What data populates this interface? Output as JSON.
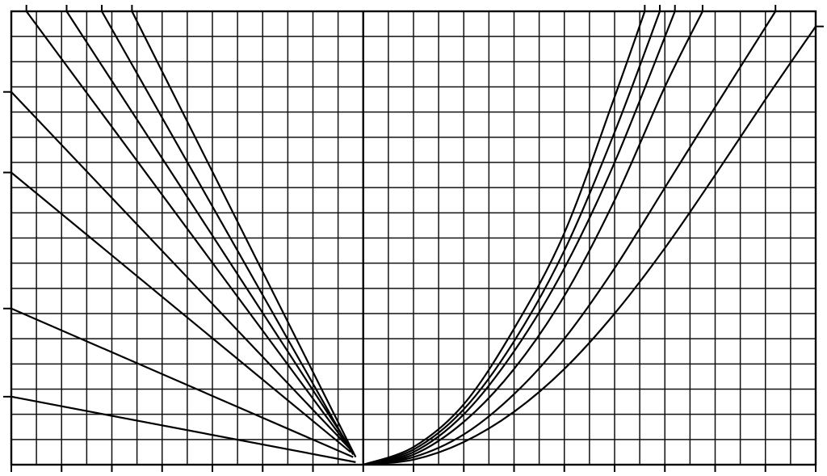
{
  "chart_data": {
    "type": "line",
    "title": "",
    "xlabel": "",
    "ylabel": "",
    "xlim": [
      -14,
      18
    ],
    "ylim": [
      0,
      18
    ],
    "grid": true,
    "x_grid_step": 1,
    "y_grid_step": 1,
    "x_major_ticks": [
      -14,
      -12,
      -10,
      -8,
      -6,
      -4,
      -2,
      0,
      2,
      4,
      6,
      8,
      10,
      12,
      14,
      16,
      18
    ],
    "y_major_ticks_left": [
      2.7,
      6.2,
      11.6,
      14.8
    ],
    "y_major_ticks_right": [
      17.4
    ],
    "top_ticks": [
      -13.4,
      -11.8,
      -10.4,
      -9.2,
      11.2,
      11.8,
      12.4,
      13.5,
      16.4
    ],
    "legend": "none",
    "colors": {
      "line": "#000000",
      "grid": "#111111",
      "background": "#ffffff"
    },
    "series": [
      {
        "kind": "linear",
        "x": [
          -14,
          -0.3
        ],
        "y": [
          2.7,
          0.1
        ]
      },
      {
        "kind": "linear",
        "x": [
          -14,
          -0.4
        ],
        "y": [
          6.2,
          0.3
        ]
      },
      {
        "kind": "linear",
        "x": [
          -14,
          -0.5
        ],
        "y": [
          11.6,
          0.5
        ]
      },
      {
        "kind": "linear",
        "x": [
          -14,
          -0.5
        ],
        "y": [
          14.8,
          0.6
        ]
      },
      {
        "kind": "linear",
        "x": [
          -13.4,
          -0.5
        ],
        "y": [
          18,
          0.6
        ]
      },
      {
        "kind": "linear",
        "x": [
          -11.8,
          -0.4
        ],
        "y": [
          18,
          0.5
        ]
      },
      {
        "kind": "linear",
        "x": [
          -10.4,
          -0.4
        ],
        "y": [
          18,
          0.4
        ]
      },
      {
        "kind": "linear",
        "x": [
          -9.2,
          -0.3
        ],
        "y": [
          18,
          0.3
        ]
      },
      {
        "kind": "curve",
        "x": [
          0,
          2,
          4,
          6,
          8,
          10,
          11.2
        ],
        "y": [
          0,
          0.7,
          2.4,
          5.4,
          9.2,
          14.6,
          18
        ]
      },
      {
        "kind": "curve",
        "x": [
          0,
          2,
          4,
          6,
          8,
          10,
          11.8
        ],
        "y": [
          0,
          0.6,
          2.2,
          4.9,
          8.5,
          13.2,
          18
        ]
      },
      {
        "kind": "curve",
        "x": [
          0,
          2,
          4,
          6,
          8,
          10,
          12.4
        ],
        "y": [
          0,
          0.5,
          2.0,
          4.5,
          7.8,
          12.0,
          18
        ]
      },
      {
        "kind": "curve",
        "x": [
          0,
          2,
          4,
          6,
          8,
          10,
          12,
          13.5
        ],
        "y": [
          0,
          0.4,
          1.7,
          3.8,
          6.7,
          10.5,
          15.0,
          18
        ]
      },
      {
        "kind": "curve",
        "x": [
          0,
          2,
          4,
          6,
          8,
          10,
          12,
          14,
          16.4
        ],
        "y": [
          0,
          0.3,
          1.2,
          2.8,
          5.0,
          7.8,
          11.0,
          14.2,
          18
        ]
      },
      {
        "kind": "curve",
        "x": [
          0,
          2,
          4,
          6,
          8,
          10,
          12,
          14,
          16,
          18
        ],
        "y": [
          0,
          0.2,
          0.9,
          2.1,
          3.8,
          6.0,
          8.6,
          11.5,
          14.5,
          17.4
        ]
      }
    ]
  }
}
